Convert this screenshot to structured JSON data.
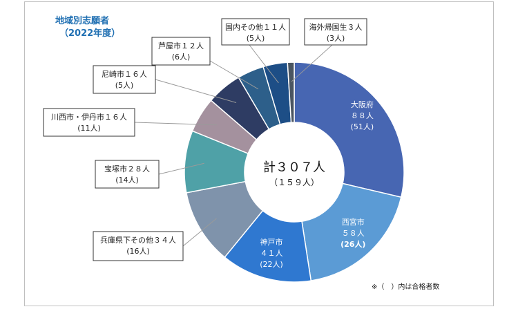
{
  "title_line1": "地域別志願者",
  "title_line2": "（2022年度）",
  "center": {
    "total": "計３０７人",
    "passed": "（１５９人）"
  },
  "note": "※（　）内は合格者数",
  "chart_data": {
    "type": "pie",
    "donut": true,
    "slices": [
      {
        "name": "大阪府",
        "value": 88,
        "passed": 51,
        "label_line1": "大阪府",
        "label_line2": "８８人",
        "label_line3": "(51人)",
        "color": "#4766b2"
      },
      {
        "name": "西宮市",
        "value": 58,
        "passed": 26,
        "label_line1": "西宮市",
        "label_line2": "５８人",
        "label_line3": "(26人)",
        "color": "#5b9bd5"
      },
      {
        "name": "神戸市",
        "value": 41,
        "passed": 22,
        "label_line1": "神戸市",
        "label_line2": "４１人",
        "label_line3": "(22人)",
        "color": "#2f78d0"
      },
      {
        "name": "兵庫県下その他",
        "value": 34,
        "passed": 16,
        "label_line1": "兵庫県下その他３４人",
        "label_line2": "(16人)",
        "color": "#7f93ab"
      },
      {
        "name": "宝塚市",
        "value": 28,
        "passed": 14,
        "label_line1": "宝塚市２８人",
        "label_line2": "(14人)",
        "color": "#4fa1a7"
      },
      {
        "name": "川西市・伊丹市",
        "value": 16,
        "passed": 11,
        "label_line1": "川西市・伊丹市１６人",
        "label_line2": "(11人)",
        "color": "#a4919e"
      },
      {
        "name": "尼崎市",
        "value": 16,
        "passed": 5,
        "label_line1": "尼崎市１６人",
        "label_line2": "(5人)",
        "color": "#2e3c63"
      },
      {
        "name": "芦屋市",
        "value": 12,
        "passed": 6,
        "label_line1": "芦屋市１２人",
        "label_line2": "(6人)",
        "color": "#2d5f8a"
      },
      {
        "name": "国内その他",
        "value": 11,
        "passed": 5,
        "label_line1": "国内その他１１人",
        "label_line2": "(5人)",
        "color": "#1d4e86"
      },
      {
        "name": "海外帰国生",
        "value": 3,
        "passed": 3,
        "label_line1": "海外帰国生３人",
        "label_line2": "(3人)",
        "color": "#4a5561"
      }
    ]
  }
}
